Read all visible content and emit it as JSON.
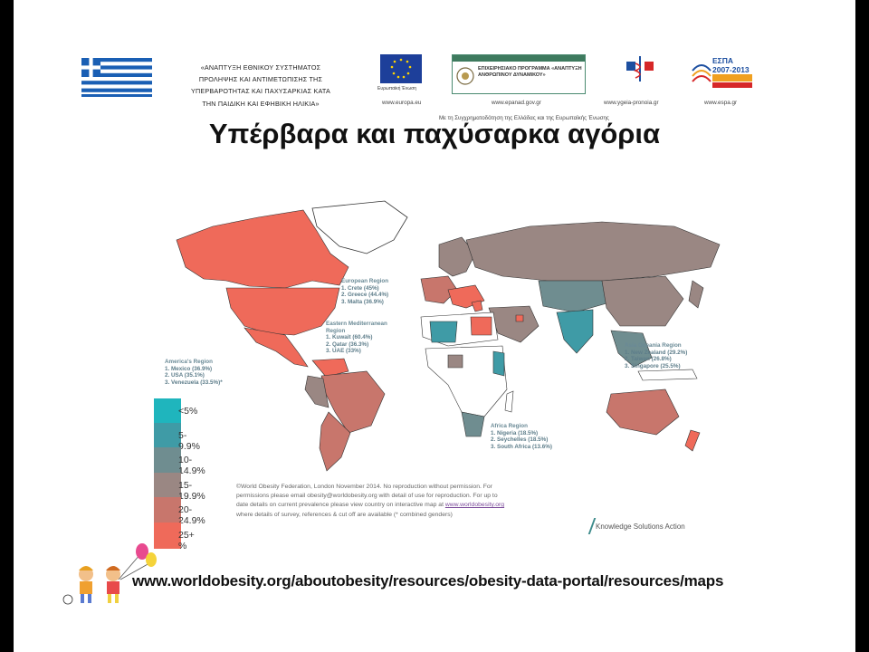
{
  "header": {
    "project_lines": [
      "«ΑΝΑΠΤΥΞΗ ΕΘΝΙΚΟΥ ΣΥΣΤΗΜΑΤΟΣ",
      "ΠΡΟΛΗΨΗΣ ΚΑΙ ΑΝΤΙΜΕΤΩΠΙΣΗΣ ΤΗΣ",
      "ΥΠΕΡΒΑΡΟΤΗΤΑΣ ΚΑΙ ΠΑΧΥΣΑΡΚΙΑΣ ΚΑΤΑ",
      "ΤΗΝ ΠΑΙΔΙΚΗ ΚΑΙ ΕΦΗΒΙΚΗ ΗΛΙΚΙΑ»"
    ],
    "logos": [
      {
        "name": "eu-flag-logo",
        "url": "www.europa.eu",
        "caption": "Ευρωπαϊκή Ένωση"
      },
      {
        "name": "epanad-logo",
        "url": "www.epanad.gov.gr",
        "caption": "ΕΠΙΧΕΙΡΗΣΙΑΚΟ ΠΡΟΓΡΑΜΜΑ «ΑΝΑΠΤΥΞΗ ΑΝΘΡΩΠΙΝΟΥ ΔΥΝΑΜΙΚΟΥ»"
      },
      {
        "name": "ygeia-pronoia-logo",
        "url": "www.ygeia-pronoia.gr"
      },
      {
        "name": "espa-logo",
        "url": "www.espa.gr",
        "caption": "ΕΣΠΑ 2007-2013"
      }
    ],
    "funding_note": "Με τη Συγχρηματοδότηση της Ελλάδας και της Ευρωπαϊκής Ένωσης"
  },
  "title": "Υπέρβαρα και παχύσαρκα αγόρια",
  "map": {
    "regions": [
      {
        "title": "European Region",
        "items": [
          "1.    Crete (45%)",
          "2.    Greece (44.4%)",
          "3.    Malta (36.9%)"
        ]
      },
      {
        "title": "Eastern Mediterranean Region",
        "items": [
          "1.    Kuwait (60.4%)",
          "2.    Qatar (36.3%)",
          "3.    UAE (33%)"
        ]
      },
      {
        "title": "America's  Region",
        "items": [
          "1.    Mexico (36.9%)",
          "2.    USA (35.1%)",
          "3.    Venezuela (33.5%)*"
        ]
      },
      {
        "title": "Asia Oceania Region",
        "items": [
          "1.    New Zealand (29.2%)",
          "2.    Taiwan (26.8%)",
          "3.    Singapore (25.5%)"
        ]
      },
      {
        "title": "Africa  Region",
        "items": [
          "1.    Nigeria (18.5%)",
          "2.    Seychelles (18.5%)",
          "3.    South Africa (13.6%)"
        ]
      }
    ],
    "legend": [
      {
        "label": "<5%",
        "color": "#1fb5bd"
      },
      {
        "label": "5-9.9%",
        "color": "#3f9ba6"
      },
      {
        "label": "10-14.9%",
        "color": "#6f8d90"
      },
      {
        "label": "15-19.9%",
        "color": "#9a8783"
      },
      {
        "label": "20-24.9%",
        "color": "#c8766c"
      },
      {
        "label": "25+ %",
        "color": "#ef6a5a"
      }
    ],
    "copyright_lines": [
      "©World Obesity Federation, London November 2014.  No reproduction without permission.  For",
      "permissions please email obesity@worldobesity.org with detail of use for reproduction. For up to",
      "date details on current prevalence please view country on interactive map at",
      "www.worldobesity.org",
      "where details of survey, references & cut off are available      (* combined genders)"
    ],
    "credit": "Knowledge Solutions Action"
  },
  "footer_url": "www.worldobesity.org/aboutobesity/resources/obesity-data-portal/resources/maps"
}
